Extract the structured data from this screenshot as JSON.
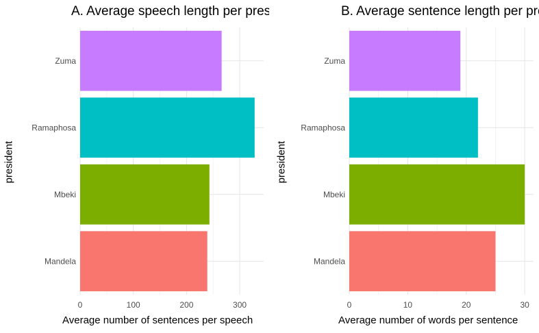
{
  "chart_data": [
    {
      "type": "bar",
      "orientation": "horizontal",
      "title": "A. Average speech length per president",
      "xlabel": "Average number of sentences per speech",
      "ylabel": "president",
      "categories": [
        "Mandela",
        "Mbeki",
        "Ramaphosa",
        "Zuma"
      ],
      "values": [
        239,
        243,
        328,
        266
      ],
      "colors": [
        "#F8766D",
        "#7CAE00",
        "#00BFC4",
        "#C77CFF"
      ],
      "xlim": [
        0,
        345
      ],
      "xticks": [
        0,
        100,
        200,
        300
      ],
      "grid": true,
      "legend": "none"
    },
    {
      "type": "bar",
      "orientation": "horizontal",
      "title": "B. Average sentence length per president",
      "xlabel": "Average number of words per sentence",
      "ylabel": "president",
      "categories": [
        "Mandela",
        "Mbeki",
        "Ramaphosa",
        "Zuma"
      ],
      "values": [
        25,
        30,
        22,
        19
      ],
      "colors": [
        "#F8766D",
        "#7CAE00",
        "#00BFC4",
        "#C77CFF"
      ],
      "xlim": [
        0,
        31.5
      ],
      "xticks": [
        0,
        10,
        20,
        30
      ],
      "grid": true,
      "legend": "none"
    }
  ]
}
